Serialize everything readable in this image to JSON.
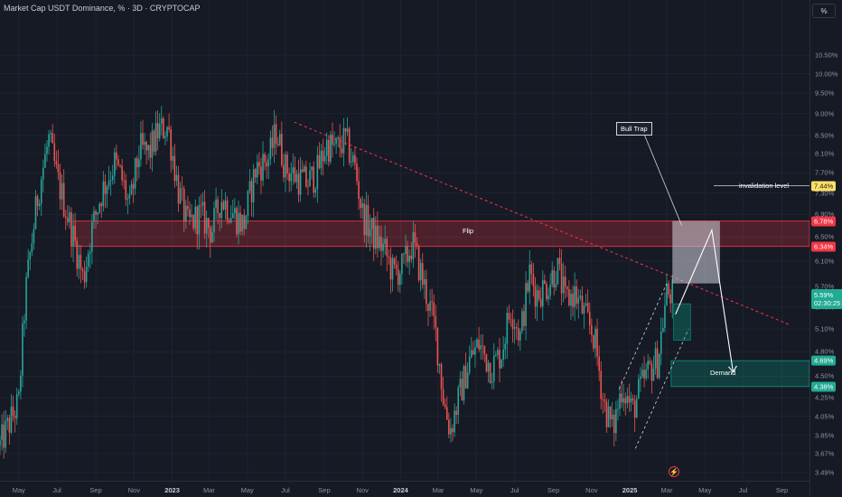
{
  "header": {
    "title": "Market Cap USDT Dominance, % · 3D · CRYPTOCAP"
  },
  "scale_button": "%",
  "current_price": {
    "value": "5.59%",
    "countdown": "02:30:25"
  },
  "price_tags": [
    {
      "text": "7.44%",
      "value": 7.44,
      "bg": "#ffe066",
      "fg": "#131722"
    },
    {
      "text": "6.78%",
      "value": 6.78,
      "bg": "#f23645",
      "fg": "#ffffff"
    },
    {
      "text": "6.34%",
      "value": 6.34,
      "bg": "#f23645",
      "fg": "#ffffff"
    },
    {
      "text": "4.69%",
      "value": 4.69,
      "bg": "#22ab94",
      "fg": "#ffffff"
    },
    {
      "text": "4.38%",
      "value": 4.38,
      "bg": "#22ab94",
      "fg": "#ffffff"
    }
  ],
  "annotations": {
    "flip": "Flip",
    "demand": "Demand",
    "bull_trap": "Bull Trap",
    "invalidation": "invalidation level"
  },
  "colors": {
    "up": "#26a69a",
    "down": "#ef5350",
    "background": "#161a25",
    "supply_zone": "#f23645",
    "demand_zone": "#089981"
  },
  "chart_data": {
    "type": "candlestick",
    "title": "Market Cap USDT Dominance, % · 3D · CRYPTOCAP",
    "y_scale": "log",
    "ylim": [
      3.4,
      11.5
    ],
    "y_ticks": [
      "10.50%",
      "10.00%",
      "9.50%",
      "9.00%",
      "8.50%",
      "8.10%",
      "7.70%",
      "7.30%",
      "6.90%",
      "6.50%",
      "6.10%",
      "5.70%",
      "5.40%",
      "5.10%",
      "4.80%",
      "4.50%",
      "4.25%",
      "4.05%",
      "3.85%",
      "3.67%",
      "3.49%"
    ],
    "x_ticks": [
      "May",
      "Jul",
      "Sep",
      "Nov",
      "2023",
      "Mar",
      "May",
      "Jul",
      "Sep",
      "Nov",
      "2024",
      "Mar",
      "May",
      "Jul",
      "Sep",
      "Nov",
      "2025",
      "Mar",
      "May",
      "Jul",
      "Sep"
    ],
    "x_ticks_bold": [
      "2023",
      "2024",
      "2025"
    ],
    "x_range": [
      "2022-04-01",
      "2025-10-15"
    ],
    "price_path": [
      [
        "2022-04-01",
        3.75
      ],
      [
        "2022-05-01",
        4.2
      ],
      [
        "2022-05-12",
        5.6
      ],
      [
        "2022-06-01",
        7.3
      ],
      [
        "2022-06-18",
        8.4
      ],
      [
        "2022-07-01",
        7.6
      ],
      [
        "2022-07-15",
        7.0
      ],
      [
        "2022-08-01",
        6.3
      ],
      [
        "2022-08-12",
        5.8
      ],
      [
        "2022-08-25",
        6.6
      ],
      [
        "2022-09-10",
        7.3
      ],
      [
        "2022-10-01",
        7.9
      ],
      [
        "2022-10-12",
        7.6
      ],
      [
        "2022-10-25",
        7.0
      ],
      [
        "2022-11-10",
        8.2
      ],
      [
        "2022-11-25",
        8.1
      ],
      [
        "2022-12-10",
        8.6
      ],
      [
        "2022-12-25",
        8.7
      ],
      [
        "2023-01-10",
        7.4
      ],
      [
        "2023-01-25",
        6.7
      ],
      [
        "2023-02-15",
        6.9
      ],
      [
        "2023-03-05",
        6.6
      ],
      [
        "2023-03-20",
        7.2
      ],
      [
        "2023-04-10",
        6.9
      ],
      [
        "2023-04-25",
        6.7
      ],
      [
        "2023-05-15",
        7.8
      ],
      [
        "2023-06-05",
        8.0
      ],
      [
        "2023-06-16",
        8.6
      ],
      [
        "2023-07-01",
        7.8
      ],
      [
        "2023-07-20",
        7.6
      ],
      [
        "2023-08-05",
        7.5
      ],
      [
        "2023-08-20",
        7.7
      ],
      [
        "2023-09-05",
        8.3
      ],
      [
        "2023-09-20",
        8.2
      ],
      [
        "2023-10-05",
        8.4
      ],
      [
        "2023-10-20",
        7.8
      ],
      [
        "2023-11-01",
        6.9
      ],
      [
        "2023-11-20",
        6.5
      ],
      [
        "2023-12-05",
        6.3
      ],
      [
        "2023-12-20",
        5.9
      ],
      [
        "2024-01-05",
        6.0
      ],
      [
        "2024-01-20",
        6.4
      ],
      [
        "2024-02-05",
        5.8
      ],
      [
        "2024-02-25",
        5.1
      ],
      [
        "2024-03-10",
        4.2
      ],
      [
        "2024-03-20",
        3.9
      ],
      [
        "2024-04-05",
        4.3
      ],
      [
        "2024-04-20",
        4.7
      ],
      [
        "2024-05-05",
        4.9
      ],
      [
        "2024-05-25",
        4.6
      ],
      [
        "2024-06-10",
        4.8
      ],
      [
        "2024-06-25",
        5.4
      ],
      [
        "2024-07-10",
        5.0
      ],
      [
        "2024-07-25",
        5.9
      ],
      [
        "2024-08-05",
        5.6
      ],
      [
        "2024-08-20",
        5.7
      ],
      [
        "2024-09-07",
        6.0
      ],
      [
        "2024-09-20",
        5.5
      ],
      [
        "2024-10-05",
        5.6
      ],
      [
        "2024-10-20",
        5.3
      ],
      [
        "2024-11-05",
        5.0
      ],
      [
        "2024-11-20",
        4.2
      ],
      [
        "2024-12-05",
        3.9
      ],
      [
        "2024-12-20",
        4.4
      ],
      [
        "2025-01-05",
        4.1
      ],
      [
        "2025-01-20",
        4.4
      ],
      [
        "2025-02-03",
        4.6
      ],
      [
        "2025-02-15",
        4.7
      ],
      [
        "2025-03-01",
        5.6
      ],
      [
        "2025-03-11",
        5.59
      ]
    ],
    "annotations": [
      {
        "type": "zone",
        "label": "Flip",
        "y_from": 6.34,
        "y_to": 6.78,
        "x_from": "2022-07-27",
        "x_to": "2025-10-15"
      },
      {
        "type": "zone",
        "label": "Demand",
        "y_from": 4.38,
        "y_to": 4.69,
        "x_from": "2025-03-08",
        "x_to": "2025-10-15"
      },
      {
        "type": "hline",
        "label": "invalidation level",
        "y": 7.44
      },
      {
        "type": "trendline",
        "from": [
          "2023-07-15",
          8.8
        ],
        "to": [
          "2025-09-15",
          5.15
        ]
      },
      {
        "type": "label",
        "label": "Bull Trap"
      }
    ]
  }
}
